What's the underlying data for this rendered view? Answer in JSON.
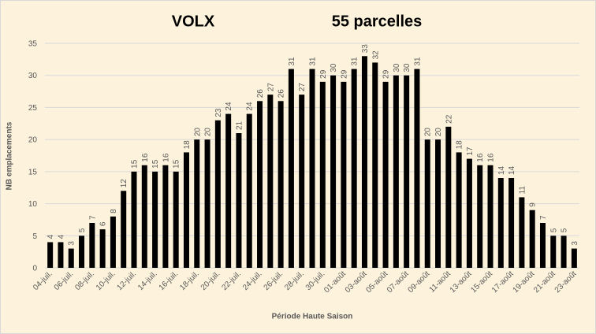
{
  "chart_data": {
    "type": "bar",
    "title": "VOLX",
    "subtitle": "55 parcelles",
    "x_label": "Période Haute Saison",
    "y_label": "NB emplacements",
    "categories": [
      "04-juil.",
      null,
      "06-juil.",
      null,
      "08-juil.",
      null,
      "10-juil.",
      null,
      "12-juil.",
      null,
      "14-juil.",
      null,
      "16-juil.",
      null,
      "18-juil.",
      null,
      "20-juil.",
      null,
      "22-juil.",
      null,
      "24-juil.",
      null,
      "26-juil.",
      null,
      "28-juil.",
      null,
      "30-juil.",
      null,
      "01-août",
      null,
      "03-août",
      null,
      "05-août",
      null,
      "07-août",
      null,
      "09-août",
      null,
      "11-août",
      null,
      "13-août",
      null,
      "15-août",
      null,
      "17-août",
      null,
      "19-août",
      null,
      "21-août",
      null,
      "23-août"
    ],
    "values": [
      4,
      4,
      3,
      5,
      7,
      6,
      8,
      12,
      15,
      16,
      15,
      16,
      15,
      18,
      20,
      20,
      23,
      24,
      21,
      24,
      26,
      27,
      26,
      31,
      27,
      31,
      29,
      30,
      29,
      31,
      33,
      32,
      29,
      30,
      30,
      31,
      20,
      20,
      22,
      18,
      17,
      16,
      16,
      14,
      14,
      11,
      9,
      7,
      5,
      5,
      3
    ],
    "color": "#000000",
    "ylim": [
      0,
      35
    ],
    "yticks": [
      0,
      5,
      10,
      15,
      20,
      25,
      30,
      35
    ],
    "grid": true
  }
}
